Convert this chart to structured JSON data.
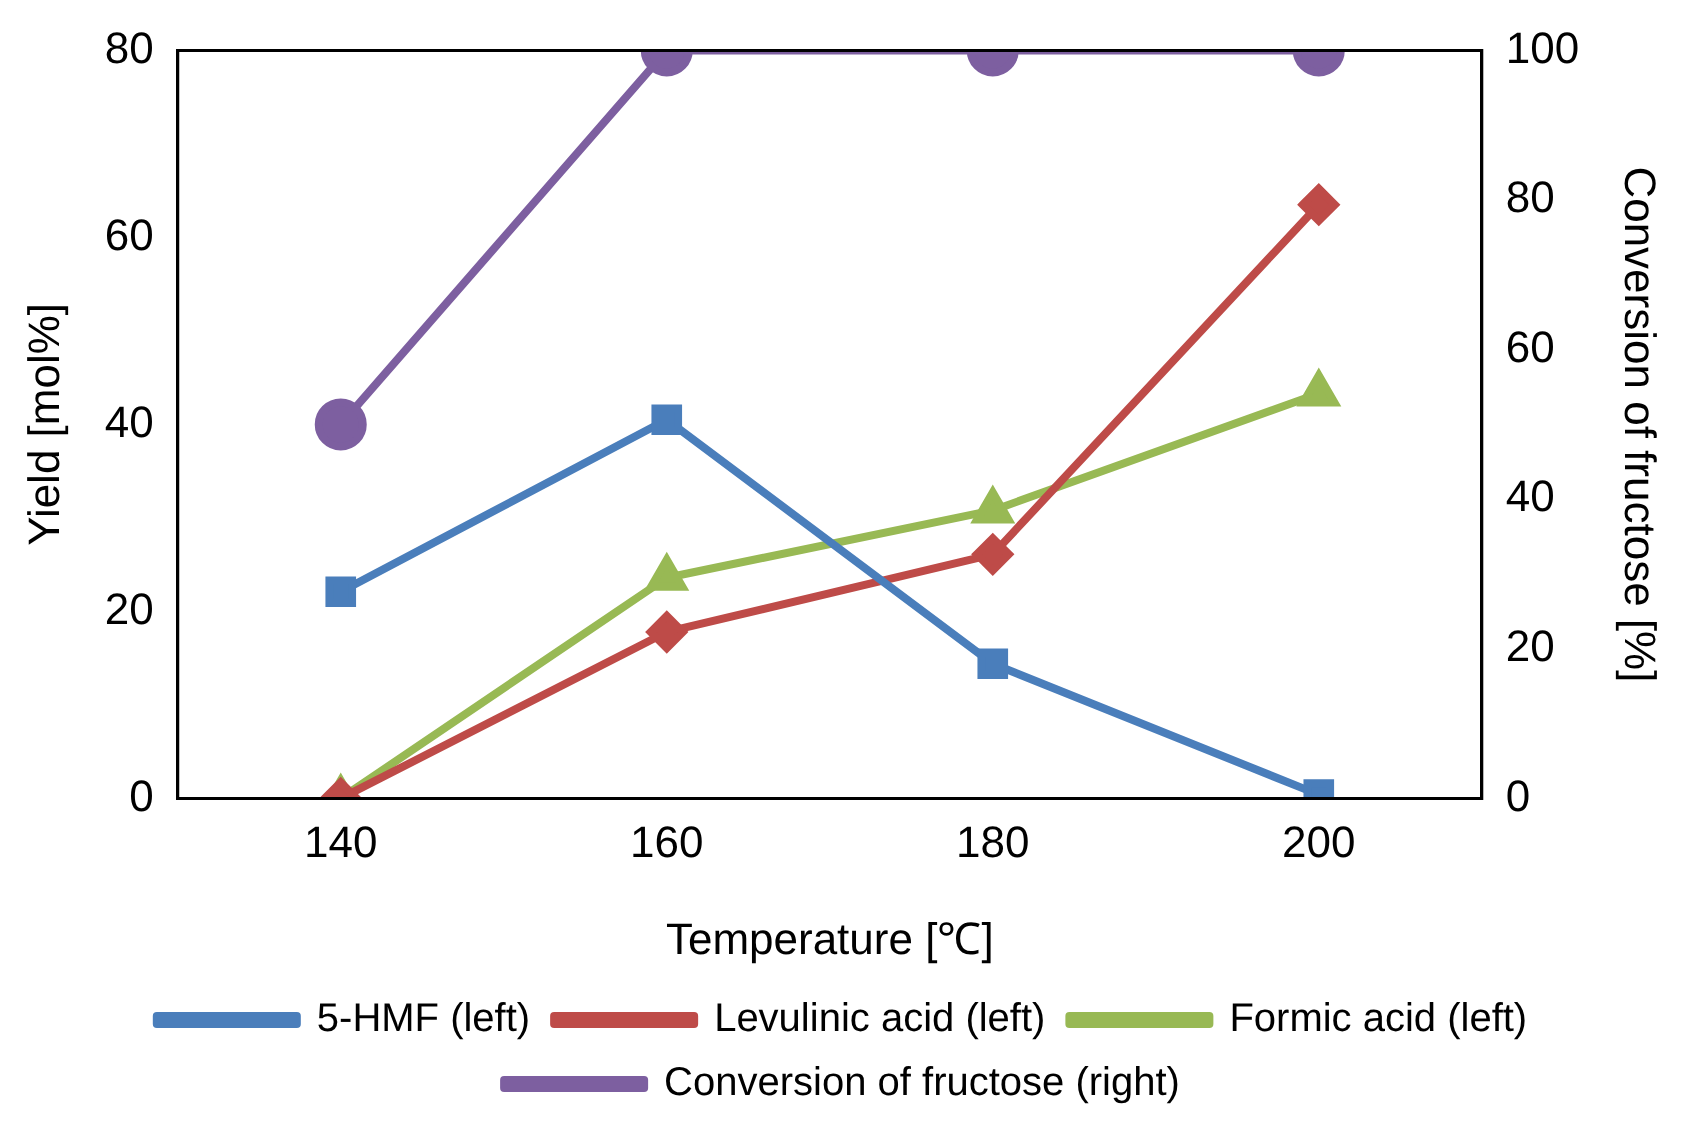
{
  "chart_data": {
    "type": "line",
    "xlabel": "Temperature [℃]",
    "ylabel": "Yield [mol%]",
    "y2label": "Conversion of fructose [%]",
    "categories": [
      "140",
      "160",
      "180",
      "200"
    ],
    "ylim": [
      0,
      80
    ],
    "yticks": [
      0,
      20,
      40,
      60,
      80
    ],
    "y2lim": [
      0,
      100
    ],
    "y2ticks": [
      0,
      20,
      40,
      60,
      80,
      100
    ],
    "grid": false,
    "legend": "bottom",
    "series": [
      {
        "name": "5-HMF (left)",
        "color": "#4a7ebb",
        "marker": "square",
        "values": [
          22.1,
          40.5,
          14.4,
          0.4
        ]
      },
      {
        "name": "Levulinic acid (left)",
        "color": "#be4b48",
        "marker": "diamond",
        "values": [
          0,
          17.8,
          26.1,
          63.5
        ]
      },
      {
        "name": "Formic acid (left)",
        "color": "#98b954",
        "marker": "triangle",
        "values": [
          0,
          23.6,
          30.8,
          43.3
        ]
      },
      {
        "name": "Conversion of fructose (right)",
        "color": "#7d5fa0",
        "marker": "circle",
        "axis": "y2",
        "values": [
          50,
          100,
          100,
          100
        ]
      }
    ]
  }
}
